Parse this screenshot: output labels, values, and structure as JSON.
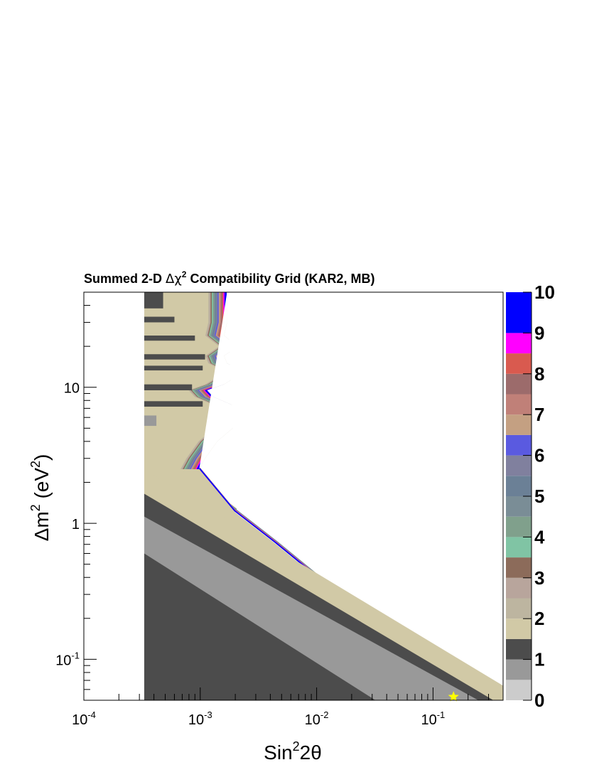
{
  "chart_data": {
    "type": "heatmap",
    "title_prefix": "Summed 2-D ",
    "title_symbol": "Δχ",
    "title_sup": "2",
    "title_suffix": " Compatibility Grid (KAR2, MB)",
    "xlabel_base": "Sin",
    "xlabel_sup": "2",
    "xlabel_tail": "2θ",
    "ylabel_base": "Δm",
    "ylabel_sup": "2",
    "ylabel_open": " (eV",
    "ylabel_sup2": "2",
    "ylabel_close": ")",
    "x_scale": "log",
    "y_scale": "log",
    "xlim": [
      0.0001,
      0.4
    ],
    "ylim": [
      0.05,
      50
    ],
    "x_ticks": [
      {
        "value": 0.0001,
        "base": "10",
        "exp": "-4"
      },
      {
        "value": 0.001,
        "base": "10",
        "exp": "-3"
      },
      {
        "value": 0.01,
        "base": "10",
        "exp": "-2"
      },
      {
        "value": 0.1,
        "base": "10",
        "exp": "-1"
      }
    ],
    "y_ticks": [
      {
        "value": 0.1,
        "base": "10",
        "exp": "-1"
      },
      {
        "value": 1,
        "base": "1",
        "exp": ""
      },
      {
        "value": 10,
        "base": "10",
        "exp": ""
      }
    ],
    "z_range": [
      0,
      10
    ],
    "colorbar_labels": [
      "0",
      "1",
      "2",
      "3",
      "4",
      "5",
      "6",
      "7",
      "8",
      "9",
      "10"
    ],
    "colorbar": [
      {
        "from": 0.0,
        "to": 0.5,
        "color": "#cccccc"
      },
      {
        "from": 0.5,
        "to": 1.0,
        "color": "#999999"
      },
      {
        "from": 1.0,
        "to": 1.5,
        "color": "#4c4c4c"
      },
      {
        "from": 1.5,
        "to": 2.0,
        "color": "#d1c9a6"
      },
      {
        "from": 2.0,
        "to": 2.5,
        "color": "#bdb5a0"
      },
      {
        "from": 2.5,
        "to": 3.0,
        "color": "#b8a59c"
      },
      {
        "from": 3.0,
        "to": 3.5,
        "color": "#8c6b5a"
      },
      {
        "from": 3.5,
        "to": 4.0,
        "color": "#80c4a4"
      },
      {
        "from": 4.0,
        "to": 4.5,
        "color": "#80a08c"
      },
      {
        "from": 4.5,
        "to": 5.0,
        "color": "#7a8d96"
      },
      {
        "from": 5.0,
        "to": 5.5,
        "color": "#6b8096"
      },
      {
        "from": 5.5,
        "to": 6.0,
        "color": "#80809e"
      },
      {
        "from": 6.0,
        "to": 6.5,
        "color": "#5a5ae0"
      },
      {
        "from": 6.5,
        "to": 7.0,
        "color": "#c4a082"
      },
      {
        "from": 7.0,
        "to": 7.5,
        "color": "#c08078"
      },
      {
        "from": 7.5,
        "to": 8.0,
        "color": "#9c6b6b"
      },
      {
        "from": 8.0,
        "to": 8.5,
        "color": "#d95a4f"
      },
      {
        "from": 8.5,
        "to": 9.0,
        "color": "#ff00ff"
      },
      {
        "from": 9.0,
        "to": 10.0,
        "color": "#0000ff"
      },
      {
        "from": 10.0,
        "to": 10.5,
        "color": "#ffffff"
      }
    ],
    "x_grid_min": 0.00033,
    "blank_color": "#ffffff",
    "lower_bands": [
      {
        "color": "#4c4c4c",
        "line": [
          [
            0.00033,
            0.6
          ],
          [
            0.032,
            0.05
          ]
        ]
      },
      {
        "color": "#999999",
        "line": [
          [
            0.00033,
            1.12
          ],
          [
            0.245,
            0.05
          ]
        ]
      },
      {
        "color": "#4c4c4c",
        "line": [
          [
            0.00033,
            1.65
          ],
          [
            0.33,
            0.05
          ]
        ]
      },
      {
        "color": "#d1c9a6",
        "line": [
          [
            0.00033,
            2.5
          ],
          [
            0.4,
            0.064
          ]
        ]
      }
    ],
    "contour_ref": [
      [
        0.00098,
        2.5
      ],
      [
        0.002,
        1.2
      ],
      [
        0.0045,
        0.7
      ],
      [
        0.01,
        0.4
      ],
      [
        0.02,
        0.26
      ],
      [
        0.05,
        0.148
      ],
      [
        0.1,
        0.1
      ],
      [
        0.2,
        0.07
      ],
      [
        0.4,
        0.052
      ]
    ],
    "contour_colors": [
      "#d1c9a6",
      "#bdb5a0",
      "#b8a59c",
      "#8c6b5a",
      "#80c4a4",
      "#80a08c",
      "#7a8d96",
      "#6b8096",
      "#80809e",
      "#5a5ae0",
      "#c4a082",
      "#c08078",
      "#9c6b6b",
      "#d95a4f",
      "#ff00ff",
      "#0000ff"
    ],
    "upper_boundary": [
      [
        0.00098,
        2.5
      ],
      [
        0.0011,
        3.0
      ],
      [
        0.0014,
        4.0
      ],
      [
        0.0019,
        5.0
      ],
      [
        0.0026,
        6.3
      ],
      [
        0.0022,
        7.0
      ],
      [
        0.0013,
        8.5
      ],
      [
        0.00115,
        9.5
      ],
      [
        0.0016,
        10.5
      ],
      [
        0.0024,
        13.0
      ],
      [
        0.0017,
        15.0
      ],
      [
        0.0016,
        17.0
      ],
      [
        0.0021,
        20.0
      ],
      [
        0.0016,
        24.0
      ],
      [
        0.0017,
        30.0
      ],
      [
        0.0017,
        50.0
      ]
    ],
    "upper_left_stripes": [
      {
        "color": "#4c4c4c",
        "y": [
          38,
          50
        ],
        "x_end": 0.00048
      },
      {
        "color": "#4c4c4c",
        "y": [
          30,
          33
        ],
        "x_end": 0.0006
      },
      {
        "color": "#4c4c4c",
        "y": [
          22,
          24
        ],
        "x_end": 0.0009
      },
      {
        "color": "#4c4c4c",
        "y": [
          16,
          17.5
        ],
        "x_end": 0.0011
      },
      {
        "color": "#4c4c4c",
        "y": [
          13.3,
          14.4
        ],
        "x_end": 0.00105
      },
      {
        "color": "#4c4c4c",
        "y": [
          9.5,
          10.5
        ],
        "x_end": 0.00085
      },
      {
        "color": "#4c4c4c",
        "y": [
          7.2,
          7.9
        ],
        "x_end": 0.00105
      },
      {
        "color": "#999999",
        "y": [
          5.2,
          6.2
        ],
        "x_end": 0.00042
      }
    ],
    "best_fit": {
      "x": 0.15,
      "y": 0.053,
      "color": "#ffff00"
    }
  }
}
